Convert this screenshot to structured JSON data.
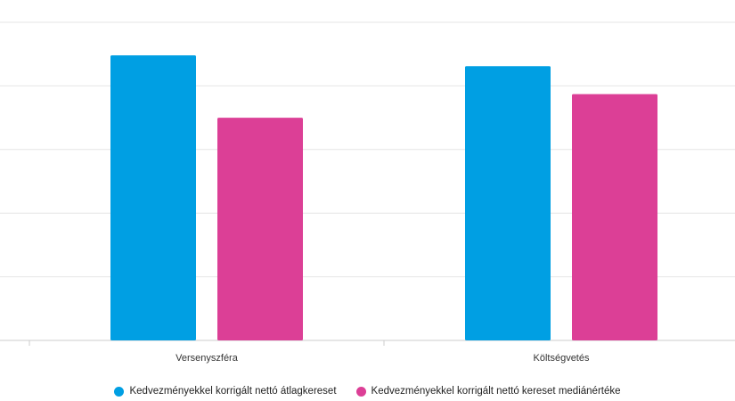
{
  "chart_data": {
    "type": "bar",
    "categories": [
      "Versenyszféra",
      "Költségvetés"
    ],
    "series": [
      {
        "name": "Kedvezményekkel korrigált nettó átlagkereset",
        "color": "#009fe3",
        "values": [
          4.48,
          4.31
        ]
      },
      {
        "name": "Kedvezményekkel korrigált nettó kereset mediánértéke",
        "color": "#dc3f96",
        "values": [
          3.5,
          3.87
        ]
      }
    ],
    "ylim": [
      0,
      5
    ],
    "grid": true,
    "legend": "bottom",
    "title": "",
    "xlabel": "",
    "ylabel": ""
  }
}
